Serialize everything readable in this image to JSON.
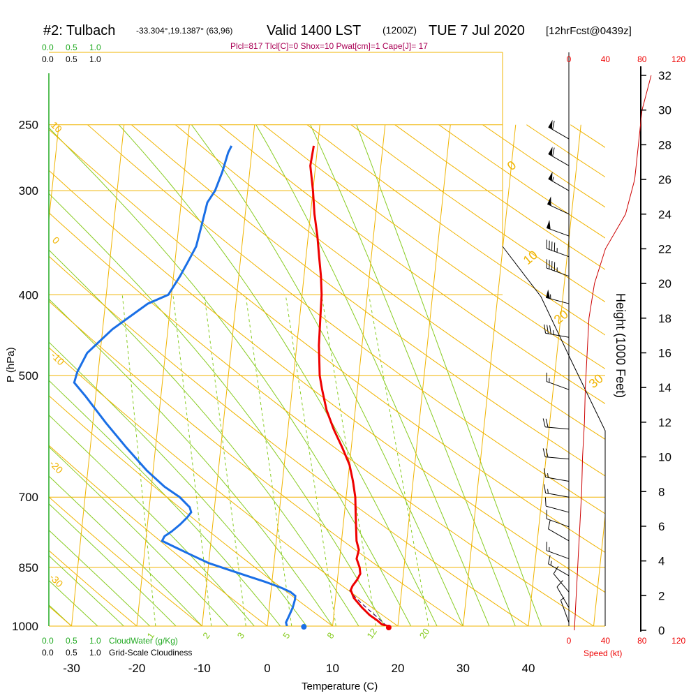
{
  "title": {
    "station": "#2: Tulbach",
    "coords": "-33.304°,19.1387° (63,96)",
    "valid": "Valid 1400 LST",
    "utc": "(1200Z)",
    "date": "TUE 7 Jul 2020",
    "forecast": "[12hrFcst@0439z]"
  },
  "indices": "Plcl=817 Tlcl[C]=0 Shox=10 Pwat[cm]=1 Cape[J]= 17",
  "colors": {
    "temperature": "#ee0000",
    "dewpoint": "#1a6fe6",
    "isotherm": "#f0b400",
    "dry_adiabat": "#f0b400",
    "moist_adiabat": "#88cc22",
    "mixing_ratio": "#88cc22",
    "cloud": "#22aa22",
    "indices": "#aa0055",
    "wind_speed": "#ee0000"
  },
  "cloud_scale_top": {
    "label0": "0.0",
    "label1": "0.5",
    "label2": "1.0"
  },
  "cloudiness_scale_top": {
    "label0": "0.0",
    "label1": "0.5",
    "label2": "1.0"
  },
  "cloud_scale_bottom": {
    "label0": "0.0",
    "label1": "0.5",
    "label2": "1.0",
    "title": "CloudWater (g/Kg)"
  },
  "cloudiness_scale_bottom": {
    "label0": "0.0",
    "label1": "0.5",
    "label2": "1.0",
    "title": "Grid-Scale Cloudiness"
  },
  "chart_data": {
    "type": "line",
    "xlabel": "Temperature (C)",
    "ylabel": "P (hPa)",
    "y2label": "Height (1000 Feet)",
    "xlim": [
      -35,
      36
    ],
    "ylim": [
      1000,
      250
    ],
    "pressure_ticks": [
      1000,
      850,
      700,
      500,
      400,
      300,
      250
    ],
    "pressure_labels": [
      "1000",
      "850",
      "700",
      "500",
      "400",
      "300",
      "250"
    ],
    "temperature_ticks": [
      -30,
      -20,
      -10,
      0,
      10,
      20,
      30,
      40
    ],
    "temperature_labels": [
      "-30",
      "-20",
      "-10",
      "0",
      "10",
      "20",
      "30",
      "40"
    ],
    "height_ticks": [
      "0",
      "2",
      "4",
      "6",
      "8",
      "10",
      "12",
      "14",
      "16",
      "18",
      "20",
      "22",
      "24",
      "26",
      "28",
      "30",
      "32"
    ],
    "speed_ticks": [
      "0",
      "40",
      "80",
      "120"
    ],
    "speed_label": "Speed (kt)",
    "mixing_ratio_labels": [
      "1",
      "2",
      "3",
      "5",
      "8",
      "12",
      "20"
    ],
    "moist_adiabat_labels": [
      "0",
      "10",
      "20",
      "30"
    ],
    "dry_adiabat_labels": [
      "10",
      "0",
      "-10",
      "-20",
      "-30"
    ],
    "series": [
      {
        "name": "Temperature",
        "points": [
          [
            18.5,
            1000
          ],
          [
            17.5,
            995
          ],
          [
            16.8,
            985
          ],
          [
            15.5,
            970
          ],
          [
            14.2,
            950
          ],
          [
            12.8,
            925
          ],
          [
            12.2,
            905
          ],
          [
            12.4,
            895
          ],
          [
            13.0,
            880
          ],
          [
            13.4,
            865
          ],
          [
            13.2,
            850
          ],
          [
            12.6,
            830
          ],
          [
            12.8,
            810
          ],
          [
            12.3,
            790
          ],
          [
            12.0,
            760
          ],
          [
            11.7,
            730
          ],
          [
            11.4,
            700
          ],
          [
            10.8,
            670
          ],
          [
            10.0,
            640
          ],
          [
            8.6,
            610
          ],
          [
            7.0,
            580
          ],
          [
            5.6,
            550
          ],
          [
            4.6,
            520
          ],
          [
            4.0,
            500
          ],
          [
            3.4,
            460
          ],
          [
            3.2,
            430
          ],
          [
            3.0,
            400
          ],
          [
            2.6,
            380
          ],
          [
            2.0,
            360
          ],
          [
            1.4,
            340
          ],
          [
            0.6,
            320
          ],
          [
            0.0,
            300
          ],
          [
            -0.8,
            280
          ],
          [
            -0.6,
            265
          ]
        ]
      },
      {
        "name": "Dewpoint",
        "points": [
          [
            3.0,
            1000
          ],
          [
            2.8,
            990
          ],
          [
            3.2,
            970
          ],
          [
            3.6,
            950
          ],
          [
            3.8,
            930
          ],
          [
            3.8,
            920
          ],
          [
            3.0,
            910
          ],
          [
            1.6,
            900
          ],
          [
            -1.0,
            885
          ],
          [
            -4.0,
            870
          ],
          [
            -7.0,
            855
          ],
          [
            -10.0,
            840
          ],
          [
            -13.0,
            820
          ],
          [
            -16.0,
            800
          ],
          [
            -17.5,
            790
          ],
          [
            -17.2,
            780
          ],
          [
            -16.2,
            770
          ],
          [
            -15.0,
            755
          ],
          [
            -14.0,
            740
          ],
          [
            -13.5,
            730
          ],
          [
            -13.8,
            720
          ],
          [
            -15.5,
            700
          ],
          [
            -18.0,
            680
          ],
          [
            -21.0,
            650
          ],
          [
            -24.5,
            610
          ],
          [
            -28.0,
            570
          ],
          [
            -31.5,
            530
          ],
          [
            -33.5,
            510
          ],
          [
            -33.2,
            495
          ],
          [
            -32.0,
            470
          ],
          [
            -28.5,
            440
          ],
          [
            -23.5,
            410
          ],
          [
            -20.5,
            400
          ],
          [
            -19.0,
            380
          ],
          [
            -18.0,
            365
          ],
          [
            -17.0,
            350
          ],
          [
            -16.5,
            330
          ],
          [
            -16.0,
            310
          ],
          [
            -15.0,
            300
          ],
          [
            -14.2,
            285
          ],
          [
            -13.6,
            270
          ],
          [
            -13.2,
            265
          ]
        ]
      },
      {
        "name": "Parcel",
        "points": [
          [
            18.3,
            1000
          ],
          [
            17.0,
            980
          ],
          [
            15.2,
            955
          ],
          [
            13.8,
            935
          ],
          [
            12.5,
            915
          ],
          [
            12.0,
            905
          ]
        ]
      }
    ],
    "surface_markers": {
      "temperature": 18.6,
      "dewpoint": 5.6
    },
    "height_profile_kft": [
      0,
      2,
      4,
      6,
      8,
      10,
      12,
      14,
      16,
      18,
      20,
      22,
      24,
      26,
      28,
      30,
      32
    ],
    "wind_speed_profile_kt": [
      6,
      8,
      10,
      12,
      14,
      15,
      17,
      18,
      20,
      22,
      28,
      40,
      62,
      72,
      76,
      80,
      90
    ],
    "wind_barbs": [
      {
        "p": 260,
        "spd": 60,
        "dir": 300
      },
      {
        "p": 280,
        "spd": 60,
        "dir": 300
      },
      {
        "p": 300,
        "spd": 55,
        "dir": 300
      },
      {
        "p": 320,
        "spd": 50,
        "dir": 295
      },
      {
        "p": 340,
        "spd": 50,
        "dir": 290
      },
      {
        "p": 360,
        "spd": 45,
        "dir": 290
      },
      {
        "p": 380,
        "spd": 45,
        "dir": 290
      },
      {
        "p": 410,
        "spd": 55,
        "dir": 285
      },
      {
        "p": 450,
        "spd": 35,
        "dir": 280
      },
      {
        "p": 520,
        "spd": 15,
        "dir": 290
      },
      {
        "p": 580,
        "spd": 20,
        "dir": 275
      },
      {
        "p": 630,
        "spd": 20,
        "dir": 275
      },
      {
        "p": 670,
        "spd": 15,
        "dir": 280
      },
      {
        "p": 700,
        "spd": 15,
        "dir": 280
      },
      {
        "p": 730,
        "spd": 10,
        "dir": 285
      },
      {
        "p": 760,
        "spd": 10,
        "dir": 290
      },
      {
        "p": 790,
        "spd": 10,
        "dir": 300
      },
      {
        "p": 830,
        "spd": 15,
        "dir": 290
      },
      {
        "p": 870,
        "spd": 15,
        "dir": 300
      },
      {
        "p": 910,
        "spd": 10,
        "dir": 320
      },
      {
        "p": 950,
        "spd": 10,
        "dir": 330
      },
      {
        "p": 990,
        "spd": 5,
        "dir": 340
      }
    ]
  }
}
